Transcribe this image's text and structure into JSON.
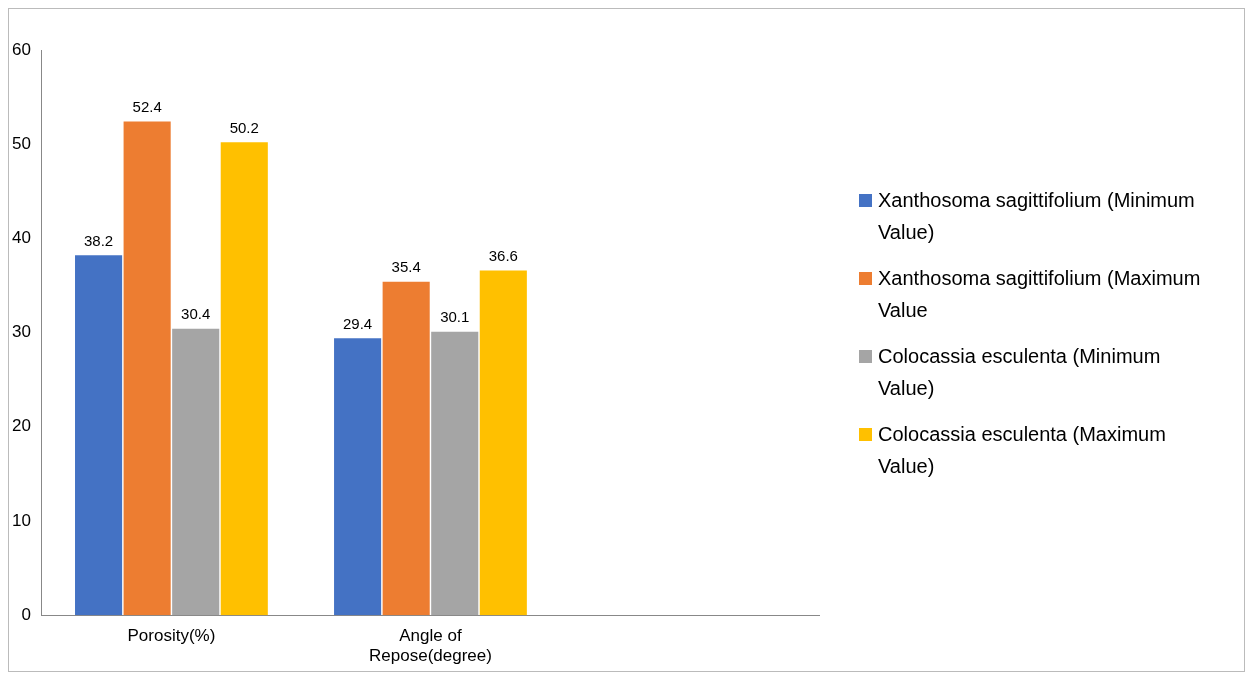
{
  "chart_data": {
    "type": "bar",
    "categories": [
      "Porosity(%)",
      "Angle of Repose(degree)",
      null
    ],
    "series": [
      {
        "name": "Xanthosoma sagittifolium (Minimum Value)",
        "color": "#4472c4",
        "values": [
          38.2,
          29.4,
          null
        ]
      },
      {
        "name": "Xanthosoma sagittifolium (Maximum Value",
        "color": "#ed7d31",
        "values": [
          52.4,
          35.4,
          null
        ]
      },
      {
        "name": "Colocassia esculenta (Minimum Value)",
        "color": "#a5a5a5",
        "values": [
          30.4,
          30.1,
          null
        ]
      },
      {
        "name": "Colocassia esculenta (Maximum Value)",
        "color": "#ffc000",
        "values": [
          50.2,
          36.6,
          null
        ]
      }
    ],
    "ylim": [
      0,
      60
    ],
    "yticks": [
      0,
      10,
      20,
      30,
      40,
      50,
      60
    ],
    "grid": false,
    "legend": "right",
    "data_labels": true
  }
}
